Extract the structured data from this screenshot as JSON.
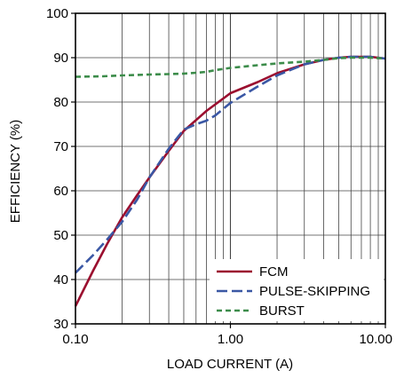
{
  "chart_data": {
    "type": "line",
    "title": "",
    "xlabel": "LOAD CURRENT (A)",
    "ylabel": "EFFICIENCY (%)",
    "xscale": "log",
    "xlim": [
      0.1,
      10
    ],
    "ylim": [
      30,
      100
    ],
    "grid": true,
    "legend_position": "bottom-right",
    "x_ticks": [
      0.1,
      1,
      10
    ],
    "x_tick_labels": [
      "0.10",
      "1.00",
      "10.00"
    ],
    "y_ticks": [
      30,
      40,
      50,
      60,
      70,
      80,
      90,
      100
    ],
    "y_tick_labels": [
      "30",
      "40",
      "50",
      "60",
      "70",
      "80",
      "90",
      "100"
    ],
    "series": [
      {
        "name": "FCM",
        "color": "#9b0f2f",
        "style": "solid",
        "points": [
          [
            0.1,
            34.0
          ],
          [
            0.13,
            42.0
          ],
          [
            0.16,
            48.0
          ],
          [
            0.2,
            54.0
          ],
          [
            0.25,
            59.0
          ],
          [
            0.3,
            63.0
          ],
          [
            0.4,
            69.0
          ],
          [
            0.5,
            73.5
          ],
          [
            0.7,
            78.0
          ],
          [
            1.0,
            82.0
          ],
          [
            1.5,
            84.5
          ],
          [
            2.0,
            86.5
          ],
          [
            3.0,
            88.5
          ],
          [
            4.0,
            89.5
          ],
          [
            5.0,
            90.0
          ],
          [
            6.0,
            90.2
          ],
          [
            7.0,
            90.2
          ],
          [
            8.0,
            90.2
          ],
          [
            10.0,
            89.8
          ]
        ]
      },
      {
        "name": "PULSE-SKIPPING",
        "color": "#3a57a4",
        "style": "dashed",
        "points": [
          [
            0.1,
            41.5
          ],
          [
            0.13,
            45.5
          ],
          [
            0.16,
            49.0
          ],
          [
            0.2,
            53.0
          ],
          [
            0.25,
            58.0
          ],
          [
            0.3,
            63.0
          ],
          [
            0.4,
            69.5
          ],
          [
            0.5,
            73.8
          ],
          [
            0.6,
            75.0
          ],
          [
            0.7,
            75.8
          ],
          [
            0.8,
            77.0
          ],
          [
            1.0,
            79.8
          ],
          [
            1.5,
            83.5
          ],
          [
            2.0,
            86.0
          ],
          [
            3.0,
            88.5
          ],
          [
            4.0,
            89.5
          ],
          [
            5.0,
            90.0
          ],
          [
            6.0,
            90.2
          ],
          [
            8.0,
            90.2
          ],
          [
            10.0,
            89.8
          ]
        ]
      },
      {
        "name": "BURST",
        "color": "#3c8c4a",
        "style": "dashed",
        "points": [
          [
            0.1,
            85.7
          ],
          [
            0.15,
            85.8
          ],
          [
            0.2,
            86.0
          ],
          [
            0.3,
            86.2
          ],
          [
            0.4,
            86.3
          ],
          [
            0.5,
            86.4
          ],
          [
            0.6,
            86.6
          ],
          [
            0.7,
            86.8
          ],
          [
            0.8,
            87.2
          ],
          [
            1.0,
            87.7
          ],
          [
            1.5,
            88.3
          ],
          [
            2.0,
            88.7
          ],
          [
            3.0,
            89.1
          ],
          [
            4.0,
            89.5
          ],
          [
            5.0,
            89.9
          ],
          [
            6.0,
            90.0
          ],
          [
            8.0,
            90.0
          ],
          [
            10.0,
            89.8
          ]
        ]
      }
    ]
  }
}
